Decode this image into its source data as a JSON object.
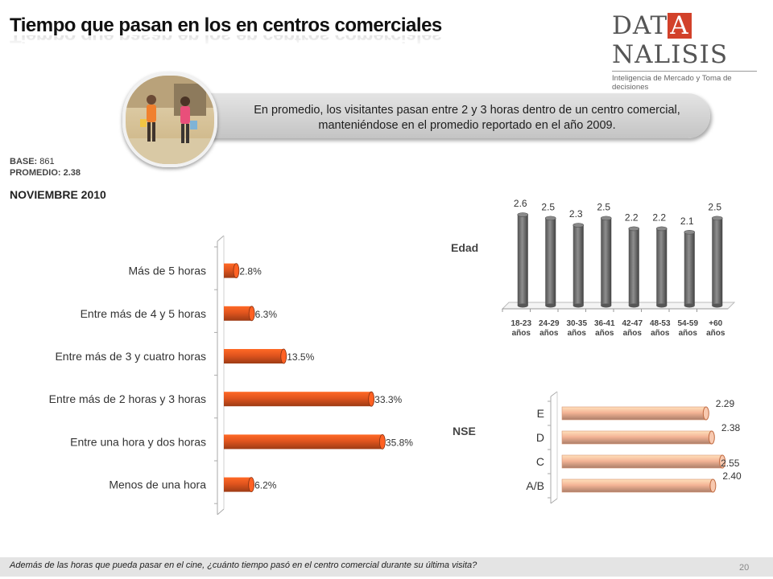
{
  "slide": {
    "title": "Tiempo que pasan en los en centros comerciales",
    "logo": {
      "brand_left": "DAT",
      "brand_box": "A",
      "brand_right": "NALISIS",
      "tagline": "Inteligencia de Mercado y Toma de decisiones"
    },
    "banner_text": "En promedio, los visitantes pasan entre 2 y 3 horas dentro de un centro comercial, manteniéndose en el promedio reportado en  el año 2009.",
    "base_label": "BASE:",
    "base_value": "861",
    "promedio_label": "PROMEDIO:",
    "promedio_value": "2.38",
    "period": "NOVIEMBRE 2010",
    "edad_label": "Edad",
    "nse_label": "NSE",
    "footer_question": "Además de las horas que pueda pasar en el cine, ¿cuánto tiempo pasó en el centro comercial durante su última visita?",
    "page_number": "20"
  },
  "colors": {
    "orange": "#e0541e",
    "grey_bar": "#6d6d6d",
    "peach": "#f4b496",
    "logo_red": "#d2412a"
  },
  "chart_data": [
    {
      "type": "bar",
      "orientation": "horizontal",
      "categories": [
        "Más de 5 horas",
        "Entre más de 4 y 5 horas",
        "Entre más de 3 y cuatro horas",
        "Entre más de 2 horas y 3 horas",
        "Entre una hora y dos horas",
        "Menos de una hora"
      ],
      "values": [
        2.8,
        6.3,
        13.5,
        33.3,
        35.8,
        6.2
      ],
      "labels": [
        "2.8%",
        "6.3%",
        "13.5%",
        "33.3%",
        "35.8%",
        "6.2%"
      ],
      "xlim": [
        0,
        40
      ],
      "color": "#e0541e"
    },
    {
      "type": "bar",
      "orientation": "vertical",
      "categories": [
        [
          "18-23",
          "años"
        ],
        [
          "24-29",
          "años"
        ],
        [
          "30-35",
          "años"
        ],
        [
          "36-41",
          "años"
        ],
        [
          "42-47",
          "años"
        ],
        [
          "48-53",
          "años"
        ],
        [
          "54-59",
          "años"
        ],
        [
          "+60",
          "años"
        ]
      ],
      "values": [
        2.6,
        2.5,
        2.3,
        2.5,
        2.2,
        2.2,
        2.1,
        2.5
      ],
      "labels": [
        "2.6",
        "2.5",
        "2.3",
        "2.5",
        "2.2",
        "2.2",
        "2.1",
        "2.5"
      ],
      "ylim": [
        0,
        2.9
      ],
      "color": "#6d6d6d"
    },
    {
      "type": "bar",
      "orientation": "horizontal",
      "categories": [
        "E",
        "D",
        "C",
        "A/B"
      ],
      "values": [
        2.29,
        2.38,
        2.55,
        2.4
      ],
      "labels": [
        "2.29",
        "2.38",
        "2.55",
        "2.40"
      ],
      "xlim": [
        0,
        2.6
      ],
      "color": "#f4b496"
    }
  ]
}
